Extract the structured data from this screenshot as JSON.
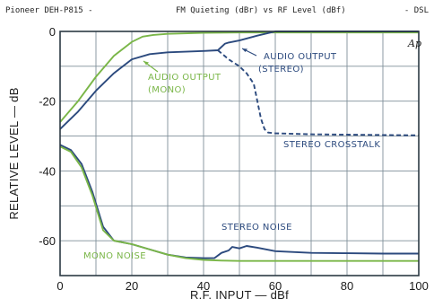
{
  "header": {
    "left": "Pioneer DEH-P815 -",
    "center": "FM Quieting (dBr) vs RF Level (dBf)",
    "right": "- DSL"
  },
  "logo_text": "Ap",
  "chart_data": {
    "type": "line",
    "title": "FM Quieting (dBr) vs RF Level (dBf)",
    "xlabel": "R.F. INPUT — dBf",
    "ylabel": "RELATIVE LEVEL — dB",
    "xlim": [
      0,
      100
    ],
    "ylim": [
      -70,
      0
    ],
    "xticks": [
      0,
      20,
      40,
      60,
      80,
      100
    ],
    "yticks": [
      0,
      -20,
      -40,
      -60
    ],
    "grid": true,
    "series": [
      {
        "name": "AUDIO OUTPUT (MONO)",
        "color": "#7ab648",
        "x": [
          0,
          5,
          10,
          15,
          20,
          23,
          26,
          30,
          40,
          50,
          60,
          70,
          80,
          90,
          100
        ],
        "y": [
          -26,
          -20,
          -13,
          -7,
          -3,
          -1.5,
          -1,
          -0.7,
          -0.4,
          -0.3,
          -0.3,
          -0.3,
          -0.3,
          -0.3,
          -0.3
        ]
      },
      {
        "name": "AUDIO OUTPUT (STEREO)",
        "color": "#2c4a7e",
        "x": [
          0,
          5,
          10,
          15,
          20,
          25,
          30,
          40,
          44,
          46,
          47,
          50,
          55,
          60,
          70,
          80,
          90,
          100
        ],
        "y": [
          -28,
          -23,
          -17,
          -12,
          -8,
          -6.5,
          -6,
          -5.6,
          -5.4,
          -3.5,
          -3.2,
          -2.6,
          -1.2,
          0,
          0,
          0,
          0,
          0
        ]
      },
      {
        "name": "STEREO CROSSTALK",
        "color": "#2c4a7e",
        "x": [
          44,
          47,
          50,
          52,
          54,
          55,
          56,
          57,
          58,
          60,
          70,
          80,
          90,
          100
        ],
        "y": [
          -5.4,
          -8,
          -10,
          -12,
          -15,
          -20,
          -25,
          -28,
          -29,
          -29.2,
          -29.5,
          -29.6,
          -29.7,
          -29.8
        ]
      },
      {
        "name": "STEREO NOISE",
        "color": "#2c4a7e",
        "x": [
          0,
          3,
          6,
          9,
          12,
          15,
          20,
          25,
          30,
          35,
          40,
          43,
          45,
          47,
          48,
          50,
          52,
          55,
          60,
          70,
          80,
          90,
          100
        ],
        "y": [
          -32.5,
          -34,
          -38,
          -46,
          -56,
          -60,
          -61,
          -62.5,
          -64,
          -64.8,
          -65,
          -65,
          -63.5,
          -62.8,
          -61.8,
          -62.2,
          -61.5,
          -62,
          -63,
          -63.5,
          -63.6,
          -63.7,
          -63.7
        ]
      },
      {
        "name": "MONO NOISE",
        "color": "#7ab648",
        "x": [
          0,
          3,
          6,
          9,
          12,
          15,
          20,
          25,
          30,
          35,
          40,
          45,
          50,
          60,
          70,
          80,
          90,
          100
        ],
        "y": [
          -33,
          -34.5,
          -39,
          -47,
          -57,
          -60,
          -61,
          -62.5,
          -64,
          -65,
          -65.5,
          -65.7,
          -65.8,
          -65.8,
          -65.8,
          -65.8,
          -65.8,
          -65.8
        ]
      }
    ],
    "annotations": [
      {
        "line1": "AUDIO OUTPUT",
        "line2": "(MONO)",
        "color": "#7ab648"
      },
      {
        "line1": "AUDIO OUTPUT",
        "line2": "(STEREO)",
        "color": "#2c4a7e"
      },
      {
        "line1": "STEREO CROSSTALK",
        "color": "#2c4a7e"
      },
      {
        "line1": "STEREO NOISE",
        "color": "#2c4a7e"
      },
      {
        "line1": "MONO NOISE",
        "color": "#7ab648"
      }
    ]
  }
}
